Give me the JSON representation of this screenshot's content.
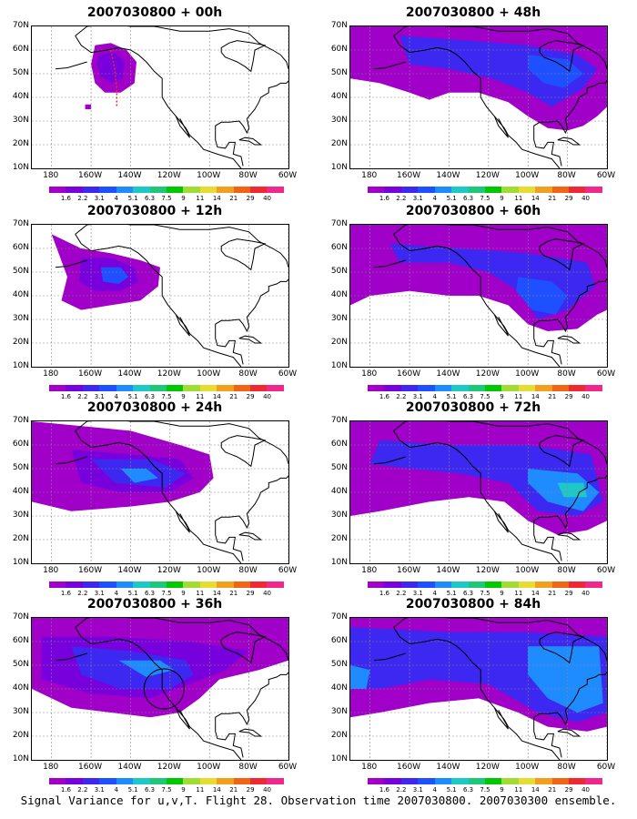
{
  "panels": [
    {
      "title": "2007030800 + 00h"
    },
    {
      "title": "2007030800 + 48h"
    },
    {
      "title": "2007030800 + 12h"
    },
    {
      "title": "2007030800 + 60h"
    },
    {
      "title": "2007030800 + 24h"
    },
    {
      "title": "2007030800 + 72h"
    },
    {
      "title": "2007030800 + 36h"
    },
    {
      "title": "2007030800 + 84h"
    }
  ],
  "lat_labels": [
    "70N",
    "60N",
    "50N",
    "40N",
    "30N",
    "20N",
    "10N"
  ],
  "lon_labels": [
    "180",
    "160W",
    "140W",
    "120W",
    "100W",
    "80W",
    "60W"
  ],
  "colorbar": {
    "labels": [
      "1.6",
      "2.2",
      "3.1",
      "4",
      "5.1",
      "6.3",
      "7.5",
      "9",
      "11",
      "14",
      "21",
      "29",
      "40"
    ],
    "colors": [
      "#a000c8",
      "#7800dc",
      "#3c28f0",
      "#1e50ff",
      "#1e8cff",
      "#1ec8c8",
      "#1ec878",
      "#00c800",
      "#a0dc32",
      "#e6dc32",
      "#f0a01e",
      "#f06414",
      "#f02832",
      "#f0288c"
    ]
  },
  "caption": "Signal Variance for u,v,T. Flight 28. Observation time 2007030800. 2007030300 ensemble."
}
